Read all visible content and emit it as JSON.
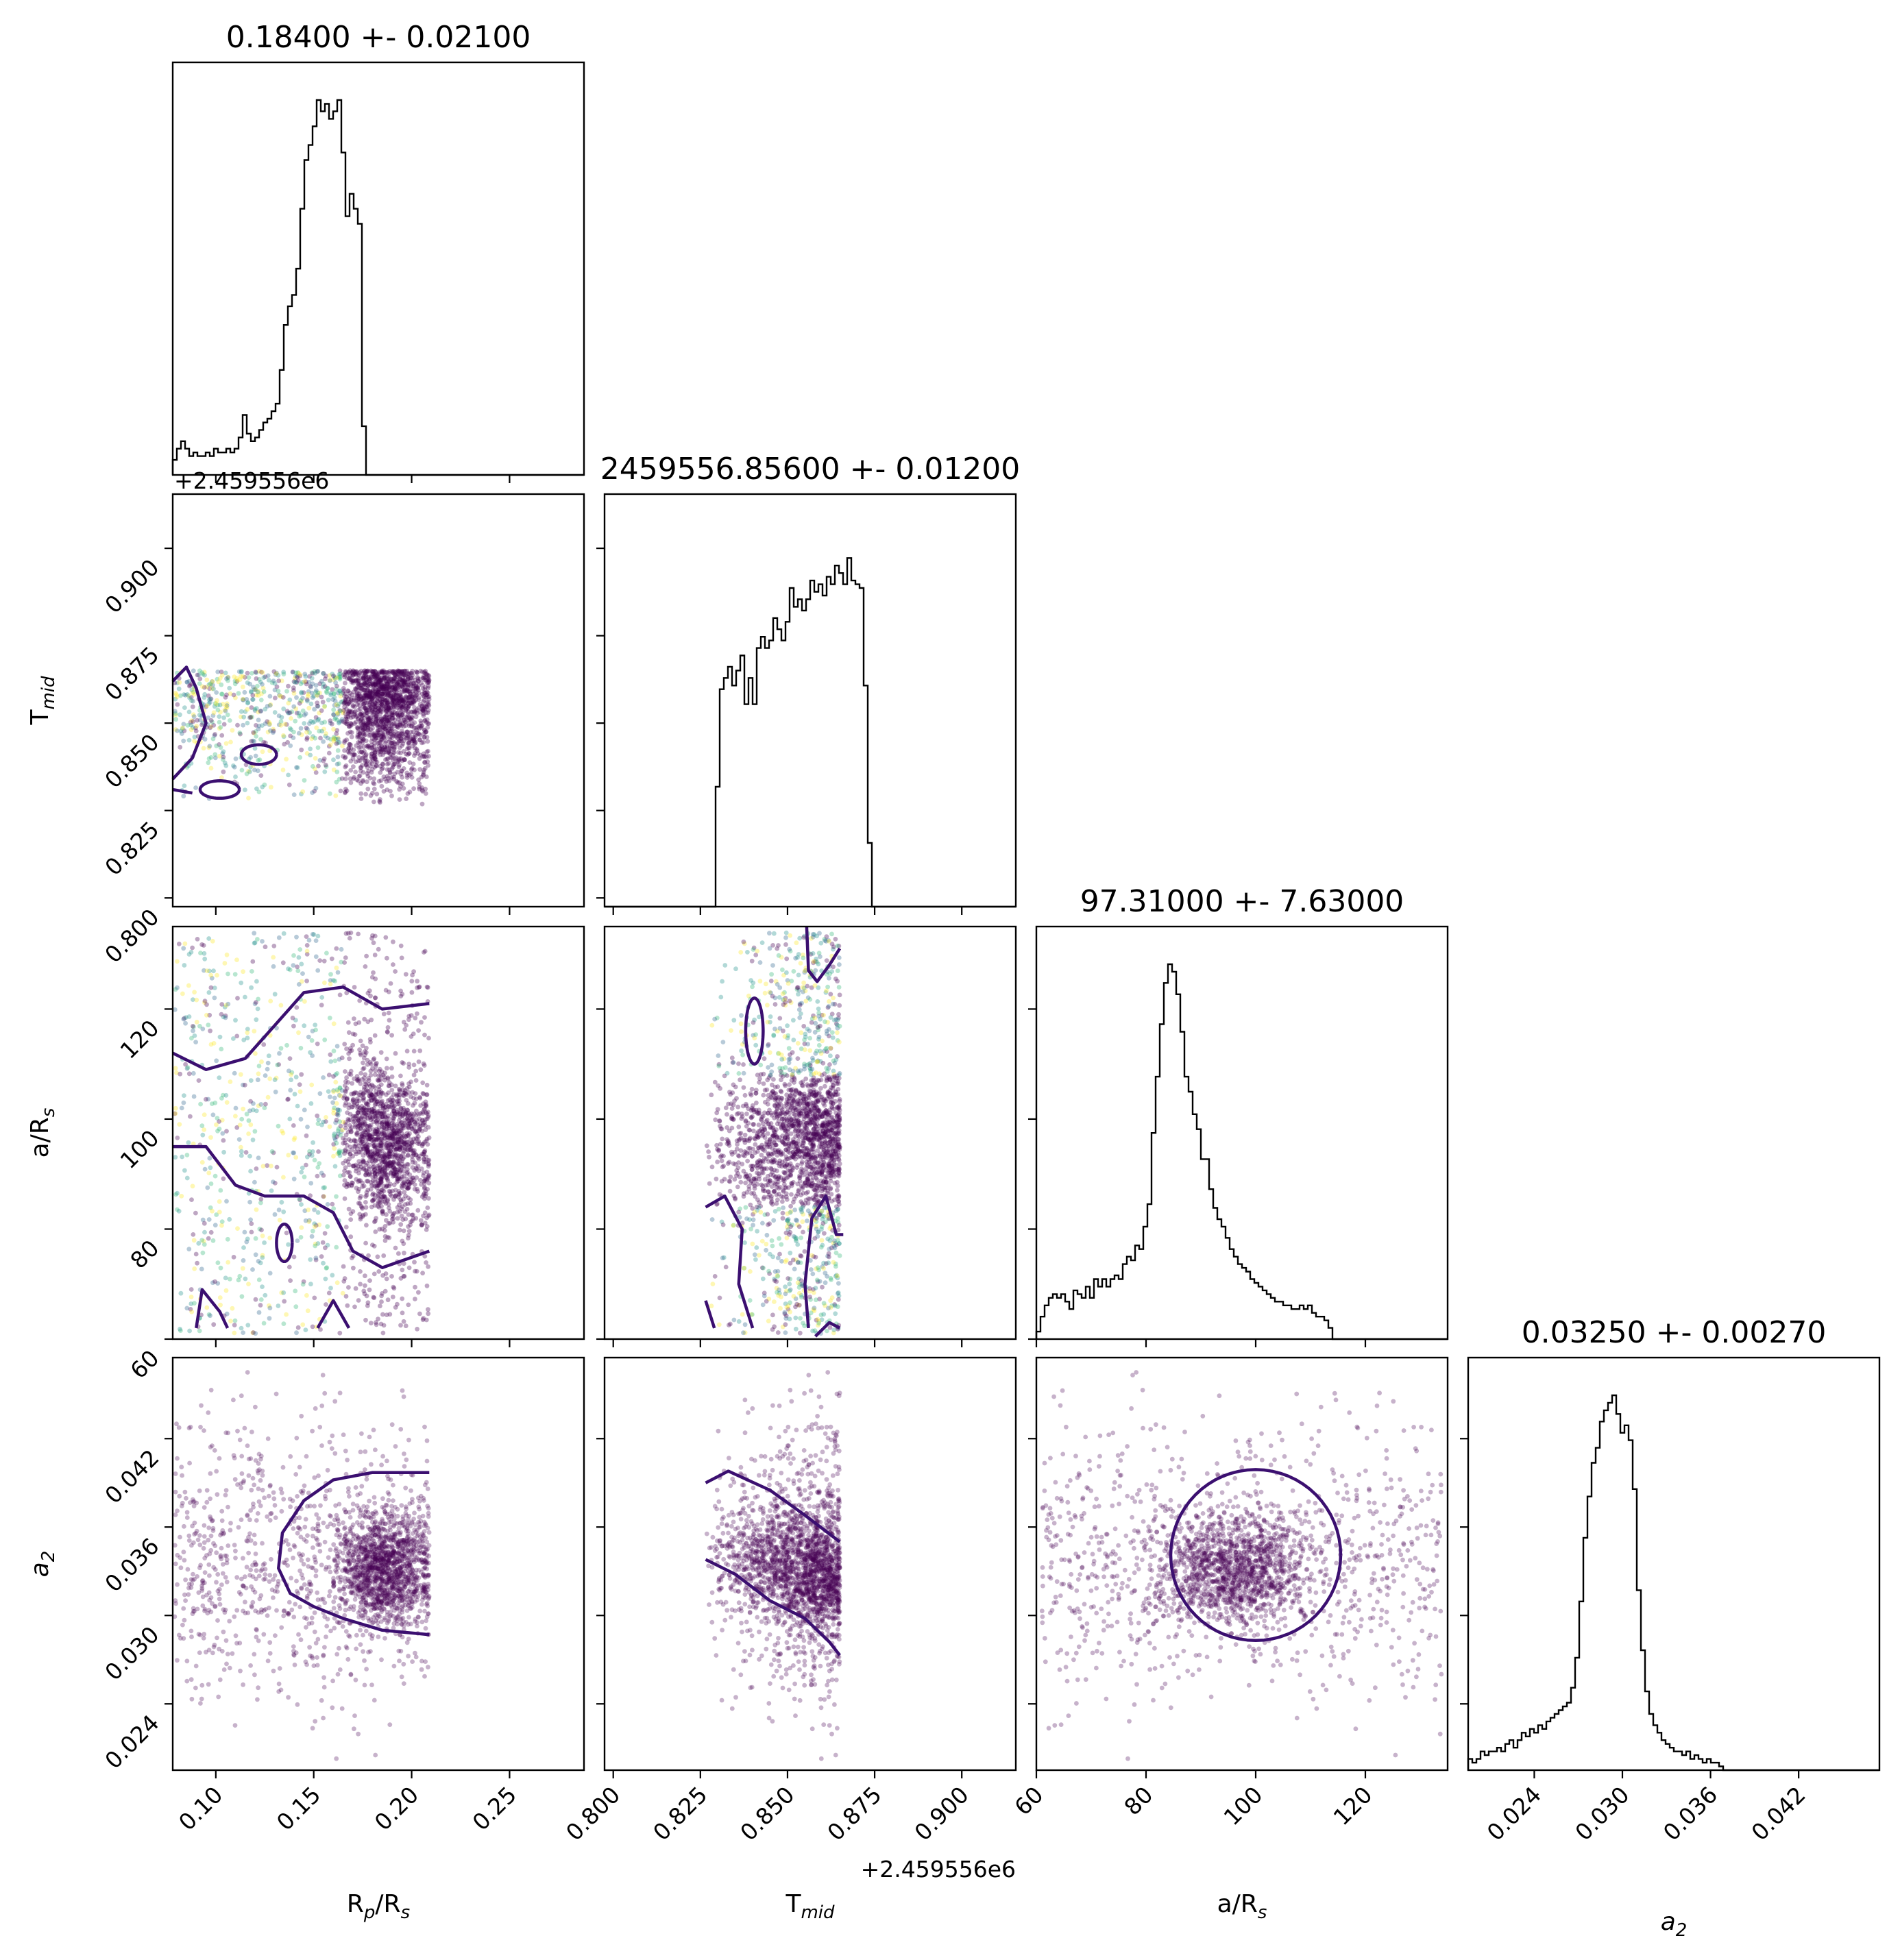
{
  "chart_data": {
    "type": "scatter",
    "variables": [
      {
        "key": "rp",
        "label_main": "R",
        "label_sub": "p",
        "label_tail": "/R",
        "label_sub2": "s",
        "range": [
          0.078,
          0.288
        ],
        "ticks": [
          0.1,
          0.15,
          0.2,
          0.25
        ],
        "tick_labels": [
          "0.10",
          "0.15",
          "0.20",
          "0.25"
        ],
        "title": "0.18400 +- 0.02100"
      },
      {
        "key": "tmid",
        "label_main": "T",
        "label_sub": "mid",
        "label_tail": "",
        "label_sub2": "",
        "offset_label": "+2.459556e6",
        "range": [
          0.7975,
          0.9155
        ],
        "ticks": [
          0.8,
          0.825,
          0.85,
          0.875,
          0.9
        ],
        "tick_labels": [
          "0.800",
          "0.825",
          "0.850",
          "0.875",
          "0.900"
        ],
        "title": "2459556.85600 +- 0.01200"
      },
      {
        "key": "ars",
        "label_main": "a/R",
        "label_sub": "s",
        "label_tail": "",
        "label_sub2": "",
        "range": [
          60,
          135
        ],
        "ticks": [
          60,
          80,
          100,
          120
        ],
        "tick_labels": [
          "60",
          "80",
          "100",
          "120"
        ],
        "title": "97.31000 +- 7.63000"
      },
      {
        "key": "a2",
        "label_main": "a",
        "label_sub": "2",
        "label_tail": "",
        "label_sub2": "",
        "italic": true,
        "range": [
          0.0195,
          0.0475
        ],
        "ticks": [
          0.024,
          0.03,
          0.036,
          0.042
        ],
        "tick_labels": [
          "0.024",
          "0.030",
          "0.036",
          "0.042"
        ],
        "title": "0.03250 +- 0.00270"
      }
    ],
    "histograms": [
      {
        "name": "rp",
        "bin_start": 0.078,
        "bin_width": 0.0021,
        "heights": [
          0.04,
          0.07,
          0.09,
          0.07,
          0.05,
          0.06,
          0.05,
          0.05,
          0.06,
          0.05,
          0.07,
          0.06,
          0.06,
          0.07,
          0.06,
          0.07,
          0.1,
          0.16,
          0.11,
          0.09,
          0.1,
          0.12,
          0.14,
          0.15,
          0.17,
          0.19,
          0.28,
          0.4,
          0.45,
          0.48,
          0.55,
          0.71,
          0.84,
          0.88,
          0.93,
          1.0,
          0.97,
          0.99,
          0.95,
          0.97,
          1.0,
          0.86,
          0.69,
          0.75,
          0.71,
          0.67,
          0.13,
          0,
          0,
          0,
          0,
          0,
          0,
          0,
          0,
          0,
          0,
          0,
          0,
          0,
          0,
          0,
          0,
          0,
          0,
          0,
          0,
          0,
          0,
          0,
          0,
          0,
          0,
          0,
          0,
          0,
          0,
          0,
          0,
          0,
          0,
          0,
          0,
          0,
          0,
          0,
          0,
          0,
          0,
          0,
          0,
          0,
          0,
          0,
          0,
          0,
          0,
          0,
          0,
          0
        ]
      },
      {
        "name": "tmid",
        "bin_start": 0.7975,
        "bin_width": 0.00118,
        "heights": [
          0,
          0,
          0,
          0,
          0,
          0,
          0,
          0,
          0,
          0,
          0,
          0,
          0,
          0,
          0,
          0,
          0,
          0,
          0,
          0,
          0,
          0,
          0,
          0,
          0,
          0,
          0,
          0.32,
          0.58,
          0.61,
          0.64,
          0.59,
          0.63,
          0.67,
          0.54,
          0.61,
          0.54,
          0.69,
          0.72,
          0.69,
          0.71,
          0.77,
          0.74,
          0.71,
          0.76,
          0.85,
          0.8,
          0.82,
          0.79,
          0.82,
          0.87,
          0.84,
          0.86,
          0.83,
          0.88,
          0.86,
          0.91,
          0.89,
          0.86,
          0.93,
          0.87,
          0.86,
          0.85,
          0.59,
          0.17,
          0,
          0,
          0,
          0,
          0,
          0,
          0,
          0,
          0,
          0,
          0,
          0,
          0,
          0,
          0,
          0,
          0,
          0,
          0,
          0,
          0,
          0,
          0,
          0,
          0,
          0,
          0,
          0,
          0,
          0,
          0,
          0,
          0,
          0,
          0
        ]
      },
      {
        "name": "ars",
        "bin_start": 60,
        "bin_width": 0.75,
        "heights": [
          0.02,
          0.06,
          0.09,
          0.11,
          0.12,
          0.11,
          0.12,
          0.1,
          0.08,
          0.13,
          0.12,
          0.11,
          0.14,
          0.11,
          0.16,
          0.14,
          0.16,
          0.14,
          0.16,
          0.17,
          0.16,
          0.2,
          0.22,
          0.21,
          0.25,
          0.24,
          0.3,
          0.36,
          0.55,
          0.7,
          0.84,
          0.95,
          1.0,
          0.98,
          0.92,
          0.82,
          0.7,
          0.66,
          0.6,
          0.56,
          0.48,
          0.48,
          0.4,
          0.35,
          0.32,
          0.3,
          0.27,
          0.24,
          0.22,
          0.2,
          0.19,
          0.18,
          0.16,
          0.15,
          0.14,
          0.13,
          0.12,
          0.11,
          0.1,
          0.1,
          0.09,
          0.09,
          0.08,
          0.08,
          0.09,
          0.08,
          0.09,
          0.07,
          0.06,
          0.06,
          0.05,
          0.03,
          0,
          0,
          0,
          0,
          0,
          0,
          0,
          0,
          0,
          0,
          0,
          0,
          0,
          0,
          0,
          0,
          0,
          0,
          0,
          0,
          0,
          0,
          0,
          0,
          0,
          0,
          0,
          0
        ]
      },
      {
        "name": "a2",
        "bin_start": 0.0195,
        "bin_width": 0.00028,
        "heights": [
          0.03,
          0.02,
          0.03,
          0.05,
          0.04,
          0.05,
          0.05,
          0.06,
          0.05,
          0.07,
          0.08,
          0.06,
          0.08,
          0.1,
          0.09,
          0.11,
          0.1,
          0.12,
          0.11,
          0.13,
          0.14,
          0.15,
          0.16,
          0.17,
          0.18,
          0.22,
          0.3,
          0.45,
          0.62,
          0.73,
          0.82,
          0.86,
          0.93,
          0.96,
          0.98,
          1.0,
          0.95,
          0.9,
          0.92,
          0.88,
          0.75,
          0.48,
          0.32,
          0.21,
          0.15,
          0.12,
          0.1,
          0.08,
          0.07,
          0.06,
          0.05,
          0.05,
          0.04,
          0.05,
          0.03,
          0.04,
          0.03,
          0.02,
          0.03,
          0.02,
          0.02,
          0.01,
          0,
          0,
          0,
          0,
          0,
          0,
          0,
          0,
          0,
          0,
          0,
          0,
          0,
          0,
          0,
          0,
          0,
          0,
          0,
          0,
          0,
          0,
          0,
          0,
          0,
          0,
          0,
          0,
          0,
          0,
          0,
          0,
          0,
          0,
          0,
          0,
          0,
          0
        ]
      }
    ],
    "point_colors": [
      "#440154",
      "#31688e",
      "#35b779",
      "#fde725",
      "#21918c"
    ],
    "contour_color": "#3b0f70",
    "grid": false,
    "legend": "none"
  }
}
